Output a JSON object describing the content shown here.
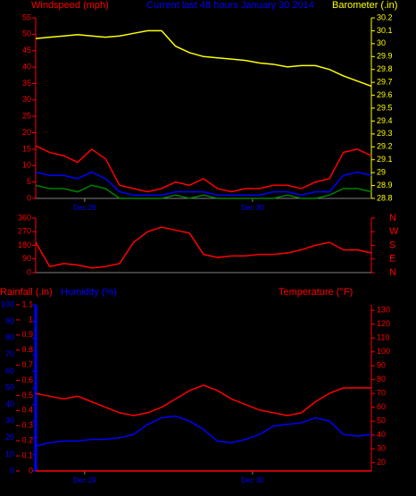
{
  "chart_data": [
    {
      "type": "line",
      "title": "Current last 48 hours January 30 2014",
      "ylabel": "Windspeed (mph)",
      "y2label": "Barometer (.in)",
      "axis_colors": {
        "y": "#ff0000",
        "y2": "#ffff00"
      },
      "title_color": "#0000ff",
      "x": [
        0,
        2,
        4,
        6,
        8,
        10,
        12,
        14,
        16,
        18,
        20,
        22,
        24,
        26,
        28,
        30,
        32,
        34,
        36,
        38,
        40,
        42,
        44,
        46,
        48
      ],
      "xlim": [
        0,
        48
      ],
      "xticks": [
        {
          "value": 7,
          "label": "Dec 29"
        },
        {
          "value": 31,
          "label": "Dec 30"
        }
      ],
      "ylim": [
        0,
        55
      ],
      "yticks": [
        0,
        5,
        10,
        15,
        20,
        25,
        30,
        35,
        40,
        45,
        50,
        55
      ],
      "y2lim": [
        28.8,
        30.2
      ],
      "y2ticks": [
        28.8,
        28.9,
        29,
        29.1,
        29.2,
        29.3,
        29.4,
        29.5,
        29.6,
        29.7,
        29.8,
        29.9,
        30,
        30.1,
        30.2
      ],
      "series": [
        {
          "color": "#ff0000",
          "values": [
            16,
            14,
            13,
            11,
            15,
            12,
            4,
            3,
            2,
            3,
            5,
            4,
            6,
            3,
            2,
            3,
            3,
            4,
            4,
            3,
            5,
            6,
            14,
            15,
            13
          ]
        },
        {
          "color": "#0000ff",
          "values": [
            8,
            7,
            7,
            6,
            8,
            6,
            2,
            1,
            1,
            1,
            2,
            2,
            2,
            1,
            1,
            1,
            1,
            2,
            2,
            1,
            2,
            2,
            7,
            8,
            7
          ]
        },
        {
          "color": "#008000",
          "values": [
            4,
            3,
            3,
            2,
            4,
            3,
            0,
            0,
            0,
            0,
            1,
            0,
            1,
            0,
            0,
            0,
            0,
            0,
            1,
            0,
            0,
            1,
            3,
            3,
            2
          ]
        },
        {
          "color": "#ffff00",
          "axis": "y2",
          "values": [
            30.04,
            30.05,
            30.06,
            30.07,
            30.06,
            30.05,
            30.06,
            30.08,
            30.1,
            30.1,
            29.98,
            29.93,
            29.9,
            29.89,
            29.88,
            29.87,
            29.85,
            29.84,
            29.82,
            29.83,
            29.83,
            29.8,
            29.75,
            29.71,
            29.67
          ]
        }
      ]
    },
    {
      "type": "line",
      "axis_colors": {
        "y": "#ff0000",
        "y2": "#ff0000"
      },
      "x": [
        0,
        2,
        4,
        6,
        8,
        10,
        12,
        14,
        16,
        18,
        20,
        22,
        24,
        26,
        28,
        30,
        32,
        34,
        36,
        38,
        40,
        42,
        44,
        46,
        48
      ],
      "xlim": [
        0,
        48
      ],
      "ylim": [
        0,
        360
      ],
      "yticks": [
        0,
        90,
        180,
        270,
        360
      ],
      "y2lim": [
        0,
        360
      ],
      "y2ticks": [
        {
          "value": 0,
          "label": "N"
        },
        {
          "value": 90,
          "label": "E"
        },
        {
          "value": 180,
          "label": "S"
        },
        {
          "value": 270,
          "label": "W"
        },
        {
          "value": 360,
          "label": "N"
        }
      ],
      "series": [
        {
          "color": "#ff0000",
          "values": [
            200,
            40,
            60,
            50,
            30,
            40,
            60,
            200,
            270,
            300,
            280,
            260,
            120,
            100,
            110,
            110,
            120,
            120,
            130,
            150,
            180,
            200,
            150,
            150,
            130
          ]
        }
      ]
    },
    {
      "type": "line",
      "ylabel": "Humidity (%)",
      "y2label": "Temperature (°F)",
      "y3label": "Rainfall (.in)",
      "axis_colors": {
        "y": "#0000ff",
        "y2": "#ff0000",
        "y3": "#ff0000"
      },
      "x": [
        0,
        2,
        4,
        6,
        8,
        10,
        12,
        14,
        16,
        18,
        20,
        22,
        24,
        26,
        28,
        30,
        32,
        34,
        36,
        38,
        40,
        42,
        44,
        46,
        48
      ],
      "xlim": [
        0,
        48
      ],
      "xticks": [
        {
          "value": 7,
          "label": "Dec 29"
        },
        {
          "value": 31,
          "label": "Dec 30"
        }
      ],
      "ylim": [
        0,
        100
      ],
      "yticks": [
        0,
        10,
        20,
        30,
        40,
        50,
        60,
        70,
        80,
        90,
        100
      ],
      "y2lim": [
        14,
        134
      ],
      "y2ticks": [
        20,
        30,
        40,
        50,
        60,
        70,
        80,
        90,
        100,
        110,
        120,
        130
      ],
      "y3lim": [
        0,
        1.1
      ],
      "y3ticks": [
        0,
        0.1,
        0.2,
        0.3,
        0.4,
        0.5,
        0.6,
        0.7,
        0.8,
        0.9,
        1,
        1.1
      ],
      "series": [
        {
          "color": "#ff0000",
          "axis": "y3",
          "values": [
            0,
            0,
            0,
            0,
            0,
            0,
            0,
            0,
            0,
            0,
            0,
            0,
            0,
            0,
            0,
            0,
            0,
            0,
            0,
            0,
            0,
            0,
            0,
            0,
            0
          ]
        },
        {
          "color": "#0000ff",
          "values": [
            15,
            17,
            18,
            18,
            19,
            19,
            20,
            22,
            28,
            32,
            33,
            30,
            25,
            18,
            17,
            19,
            22,
            27,
            28,
            29,
            32,
            30,
            22,
            21,
            22
          ]
        },
        {
          "color": "#ff0000",
          "axis": "y2",
          "values": [
            70,
            68,
            66,
            68,
            64,
            60,
            56,
            54,
            56,
            60,
            66,
            72,
            76,
            72,
            66,
            62,
            58,
            56,
            54,
            56,
            64,
            70,
            74,
            74,
            74
          ]
        }
      ]
    }
  ]
}
